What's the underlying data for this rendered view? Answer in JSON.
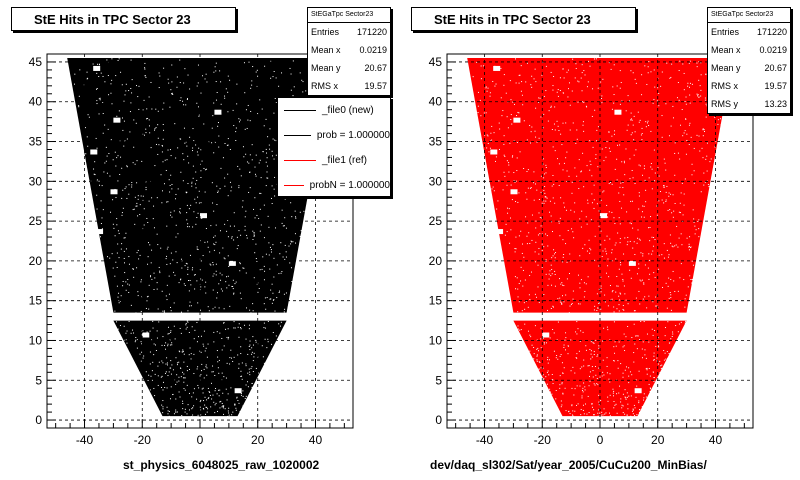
{
  "chart_data": [
    {
      "type": "scatter",
      "title": "StE Hits in TPC Sector 23",
      "xlabel": "st_physics_6048025_raw_1020002",
      "ylabel": "",
      "xlim": [
        -53,
        53
      ],
      "ylim": [
        -1,
        46
      ],
      "xticks": [
        -40,
        -20,
        0,
        20,
        40
      ],
      "yticks": [
        0,
        5,
        10,
        15,
        20,
        25,
        30,
        35,
        40,
        45
      ],
      "grid": true,
      "marker_color": "#000000",
      "stats": {
        "name": "StEGaTpc Sector23",
        "rows": [
          {
            "label": "Entries",
            "value": "171220"
          },
          {
            "label": "Mean x",
            "value": "0.0219"
          },
          {
            "label": "Mean y",
            "value": "20.67"
          },
          {
            "label": "RMS x",
            "value": "19.57"
          }
        ]
      },
      "legend": {
        "position": "top-right",
        "entries": [
          {
            "label": "_file0 (new)",
            "color": "#000000"
          },
          {
            "label": "prob = 1.000000",
            "color": "#000000"
          },
          {
            "label": "_file1 (ref)",
            "color": "#ff0000"
          },
          {
            "label": "probN = 1.000000",
            "color": "#ff0000"
          }
        ]
      },
      "region": {
        "upper": {
          "y": [
            13.5,
            45.5
          ],
          "half_width_bottom": 30,
          "half_width_top": 46
        },
        "lower": {
          "y": [
            0.5,
            12.5
          ],
          "half_width_bottom": 13,
          "half_width_top": 30
        }
      }
    },
    {
      "type": "scatter",
      "title": "StE Hits in TPC Sector 23",
      "xlabel": "dev/daq_sl302/Sat/year_2005/CuCu200_MinBias/",
      "ylabel": "",
      "xlim": [
        -53,
        53
      ],
      "ylim": [
        -1,
        46
      ],
      "xticks": [
        -40,
        -20,
        0,
        20,
        40
      ],
      "yticks": [
        0,
        5,
        10,
        15,
        20,
        25,
        30,
        35,
        40,
        45
      ],
      "grid": true,
      "marker_color": "#ff0000",
      "stats": {
        "name": "StEGaTpc Sector23",
        "rows": [
          {
            "label": "Entries",
            "value": "171220"
          },
          {
            "label": "Mean x",
            "value": "0.0219"
          },
          {
            "label": "Mean y",
            "value": "20.67"
          },
          {
            "label": "RMS x",
            "value": "19.57"
          },
          {
            "label": "RMS y",
            "value": "13.23"
          }
        ]
      },
      "region": {
        "upper": {
          "y": [
            13.5,
            45.5
          ],
          "half_width_bottom": 30,
          "half_width_top": 46
        },
        "lower": {
          "y": [
            0.5,
            12.5
          ],
          "half_width_bottom": 13,
          "half_width_top": 30
        }
      }
    }
  ]
}
